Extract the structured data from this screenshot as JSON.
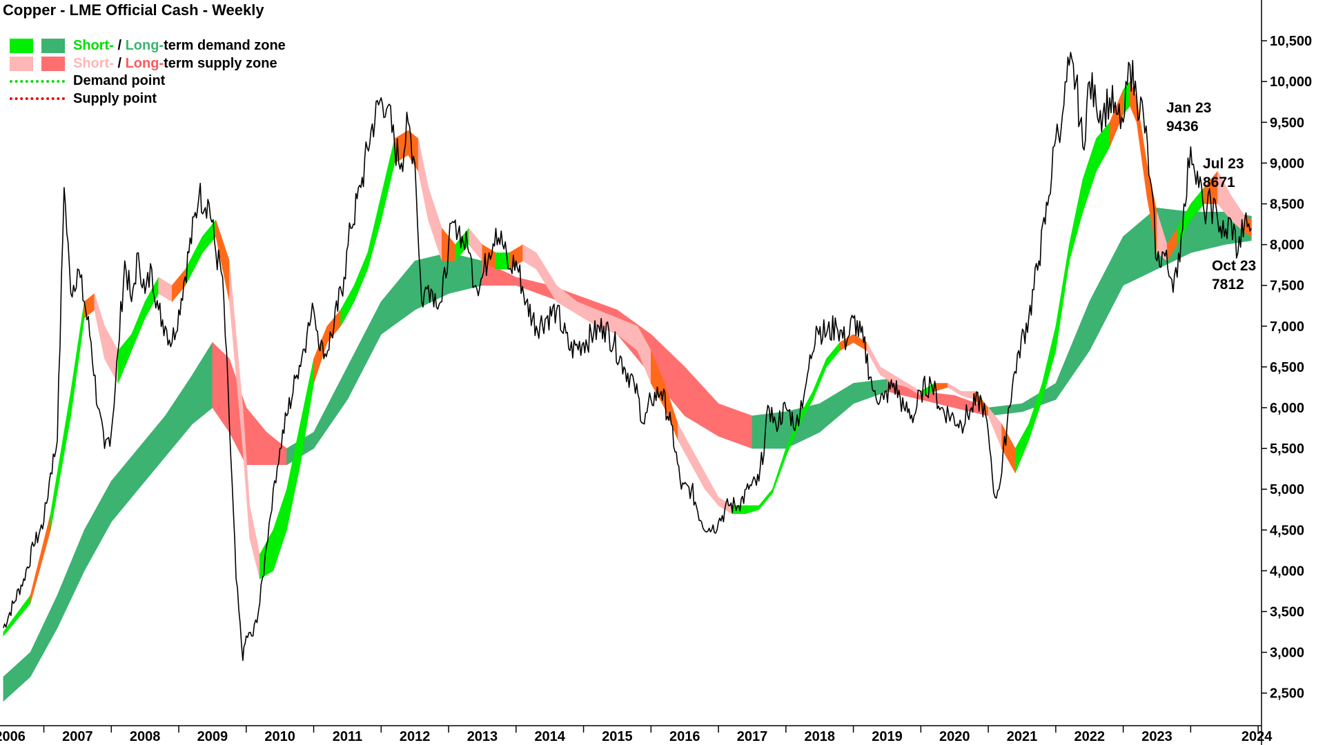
{
  "chart_data": {
    "type": "line",
    "title": "Copper - LME Official Cash - Weekly",
    "ylim": [
      2100,
      11000
    ],
    "xlim": [
      2005.35,
      2024.05
    ],
    "x_ticks": [
      2006,
      2007,
      2008,
      2009,
      2010,
      2011,
      2012,
      2013,
      2014,
      2015,
      2016,
      2017,
      2018,
      2019,
      2020,
      2021,
      2022,
      2023,
      2024
    ],
    "y_ticks": [
      2500,
      3000,
      3500,
      4000,
      4500,
      5000,
      5500,
      6000,
      6500,
      7000,
      7500,
      8000,
      8500,
      9000,
      9500,
      10000,
      10500
    ],
    "y_tick_labels": [
      "2,500",
      "3,000",
      "3,500",
      "4,000",
      "4,500",
      "5,000",
      "5,500",
      "6,000",
      "6,500",
      "7,000",
      "7,500",
      "8,000",
      "8,500",
      "9,000",
      "9,500",
      "10,000",
      "10,500"
    ],
    "colors": {
      "price": "#000000",
      "short_demand": "#00ee00",
      "long_demand": "#3cb371",
      "short_supply": "#ffb6b6",
      "long_supply": "#ff6f6f",
      "overlap": "#ff6a1a",
      "demand_point": "#00dd00",
      "supply_point": "#ee0000"
    },
    "legend": {
      "placement": "top-left",
      "demand_zone": {
        "short": "Short-",
        "slash": " / ",
        "long": "Long-",
        "rest": "term demand zone"
      },
      "supply_zone": {
        "short": "Short-",
        "slash": " / ",
        "long": "Long-",
        "rest": "term supply zone"
      },
      "demand_point": "Demand point",
      "supply_point": "Supply point"
    },
    "annotations": [
      {
        "label": "Jan 23",
        "value": "9436"
      },
      {
        "label": "Jul 23",
        "value": "8671"
      },
      {
        "label": "Oct 23",
        "value": "7812"
      }
    ],
    "series": [
      {
        "role": "price",
        "x": [
          2005.4,
          2005.55,
          2005.7,
          2005.85,
          2006.0,
          2006.1,
          2006.2,
          2006.3,
          2006.4,
          2006.5,
          2006.6,
          2006.7,
          2006.8,
          2006.9,
          2007.0,
          2007.1,
          2007.2,
          2007.3,
          2007.4,
          2007.5,
          2007.6,
          2007.7,
          2007.8,
          2007.9,
          2008.0,
          2008.15,
          2008.3,
          2008.45,
          2008.55,
          2008.65,
          2008.75,
          2008.85,
          2008.95,
          2009.0,
          2009.1,
          2009.2,
          2009.3,
          2009.4,
          2009.5,
          2009.6,
          2009.75,
          2009.9,
          2010.0,
          2010.15,
          2010.3,
          2010.45,
          2010.55,
          2010.7,
          2010.85,
          2011.0,
          2011.1,
          2011.2,
          2011.3,
          2011.4,
          2011.5,
          2011.6,
          2011.7,
          2011.8,
          2011.9,
          2012.0,
          2012.1,
          2012.2,
          2012.3,
          2012.4,
          2012.5,
          2012.6,
          2012.7,
          2012.8,
          2012.9,
          2013.0,
          2013.15,
          2013.3,
          2013.45,
          2013.6,
          2013.8,
          2014.0,
          2014.15,
          2014.3,
          2014.45,
          2014.6,
          2014.75,
          2014.9,
          2015.0,
          2015.15,
          2015.3,
          2015.45,
          2015.6,
          2015.75,
          2015.9,
          2016.0,
          2016.15,
          2016.3,
          2016.45,
          2016.6,
          2016.75,
          2016.85,
          2017.0,
          2017.15,
          2017.3,
          2017.45,
          2017.6,
          2017.75,
          2017.9,
          2018.0,
          2018.15,
          2018.3,
          2018.45,
          2018.6,
          2018.75,
          2018.9,
          2019.0,
          2019.15,
          2019.3,
          2019.45,
          2019.6,
          2019.75,
          2019.9,
          2020.0,
          2020.1,
          2020.2,
          2020.3,
          2020.45,
          2020.6,
          2020.75,
          2020.9,
          2021.0,
          2021.1,
          2021.2,
          2021.3,
          2021.4,
          2021.5,
          2021.6,
          2021.7,
          2021.8,
          2021.9,
          2022.0,
          2022.1,
          2022.2,
          2022.3,
          2022.4,
          2022.5,
          2022.6,
          2022.7,
          2022.8,
          2022.9,
          2023.0,
          2023.1,
          2023.2,
          2023.3,
          2023.4,
          2023.5,
          2023.6,
          2023.7,
          2023.8,
          2023.9
        ],
        "y": [
          3300,
          3600,
          3900,
          4300,
          4600,
          5200,
          5600,
          8700,
          7400,
          7700,
          7300,
          6800,
          6000,
          5500,
          5700,
          6700,
          7800,
          7300,
          7900,
          7400,
          7700,
          7200,
          7000,
          6800,
          7200,
          7900,
          8600,
          8500,
          7900,
          7600,
          5800,
          3900,
          2900,
          3200,
          3200,
          3600,
          4300,
          5000,
          5500,
          5900,
          6400,
          6900,
          7200,
          6600,
          7000,
          7600,
          8200,
          8700,
          9400,
          9800,
          9700,
          9200,
          9000,
          9500,
          9000,
          7300,
          7500,
          7400,
          7300,
          8000,
          8300,
          8100,
          7900,
          7500,
          7600,
          7900,
          8200,
          8000,
          7700,
          7800,
          7300,
          7000,
          7100,
          7200,
          6700,
          6800,
          6900,
          7000,
          6800,
          6500,
          6300,
          5800,
          6100,
          6200,
          5800,
          5000,
          5000,
          4600,
          4500,
          4600,
          4800,
          4800,
          5000,
          5100,
          6000,
          5800,
          6000,
          5800,
          6300,
          7000,
          6900,
          7000,
          6800,
          7100,
          6800,
          6200,
          6100,
          6300,
          6000,
          5900,
          6200,
          6300,
          6000,
          5900,
          5800,
          6000,
          6100,
          5700,
          4900,
          5200,
          6000,
          6700,
          7100,
          7800,
          8600,
          9300,
          9600,
          10200,
          10000,
          9200,
          10000,
          9700,
          9600,
          9800,
          9600,
          9500,
          10200,
          9800,
          9600,
          8800,
          7800,
          7900,
          7600,
          7600,
          8500,
          9200,
          8900,
          8400,
          8500,
          8300,
          8100,
          8300,
          7900,
          8300,
          8200
        ],
        "name": ""
      },
      {
        "role": "short_band",
        "x": [
          2005.4,
          2005.8,
          2006.1,
          2006.4,
          2006.6,
          2006.75,
          2006.9,
          2007.1,
          2007.3,
          2007.5,
          2007.7,
          2007.9,
          2008.1,
          2008.35,
          2008.55,
          2008.75,
          2008.95,
          2009.05,
          2009.2,
          2009.4,
          2009.6,
          2009.8,
          2010.0,
          2010.2,
          2010.4,
          2010.6,
          2010.8,
          2011.0,
          2011.2,
          2011.4,
          2011.55,
          2011.7,
          2011.9,
          2012.1,
          2012.3,
          2012.5,
          2012.7,
          2012.9,
          2013.1,
          2013.3,
          2013.6,
          2013.9,
          2014.2,
          2014.5,
          2014.8,
          2015.0,
          2015.2,
          2015.4,
          2015.6,
          2015.8,
          2016.0,
          2016.2,
          2016.4,
          2016.6,
          2016.8,
          2017.0,
          2017.2,
          2017.4,
          2017.6,
          2017.8,
          2018.0,
          2018.2,
          2018.4,
          2018.6,
          2018.8,
          2019.0,
          2019.2,
          2019.4,
          2019.6,
          2019.8,
          2020.0,
          2020.2,
          2020.4,
          2020.6,
          2020.8,
          2021.0,
          2021.2,
          2021.4,
          2021.6,
          2021.8,
          2022.0,
          2022.1,
          2022.2,
          2022.35,
          2022.5,
          2022.65,
          2022.8,
          2023.0,
          2023.2,
          2023.4,
          2023.6,
          2023.8,
          2023.9
        ],
        "upper": [
          3250,
          3700,
          4700,
          6200,
          7300,
          7400,
          7000,
          6700,
          6900,
          7300,
          7600,
          7500,
          7700,
          8100,
          8300,
          7800,
          6000,
          4800,
          4200,
          4500,
          5000,
          5800,
          6600,
          7000,
          7200,
          7500,
          7900,
          8600,
          9300,
          9400,
          9300,
          8700,
          8200,
          8000,
          8200,
          8000,
          7900,
          7900,
          8000,
          7900,
          7500,
          7300,
          7200,
          7100,
          7000,
          6700,
          6300,
          5800,
          5500,
          5200,
          4900,
          4800,
          4800,
          4800,
          5000,
          5500,
          5900,
          6200,
          6600,
          6800,
          6900,
          6800,
          6500,
          6400,
          6300,
          6200,
          6300,
          6300,
          6200,
          6200,
          6000,
          5800,
          5500,
          5800,
          6300,
          7000,
          8000,
          8800,
          9300,
          9500,
          9900,
          10000,
          9800,
          9000,
          8400,
          8000,
          8200,
          8500,
          8700,
          8900,
          8600,
          8350,
          8300
        ],
        "lower": [
          3200,
          3600,
          4500,
          5900,
          7100,
          7200,
          6600,
          6300,
          6700,
          7100,
          7400,
          7300,
          7500,
          7900,
          8100,
          7300,
          5500,
          4400,
          3900,
          4000,
          4500,
          5300,
          6300,
          6800,
          7000,
          7300,
          7700,
          8300,
          9000,
          9100,
          8900,
          8300,
          7800,
          7800,
          8000,
          7800,
          7700,
          7700,
          7800,
          7700,
          7300,
          7150,
          7000,
          6900,
          6700,
          6300,
          6000,
          5600,
          5300,
          5000,
          4800,
          4700,
          4700,
          4750,
          4950,
          5400,
          5800,
          6100,
          6500,
          6700,
          6800,
          6700,
          6400,
          6300,
          6250,
          6150,
          6200,
          6250,
          6150,
          6100,
          5900,
          5500,
          5200,
          5600,
          6100,
          6700,
          7800,
          8400,
          8900,
          9200,
          9600,
          9700,
          9500,
          8600,
          7900,
          7800,
          8000,
          8300,
          8500,
          8500,
          8300,
          8150,
          8100
        ]
      },
      {
        "role": "long_band",
        "x": [
          2005.4,
          2005.8,
          2006.2,
          2006.6,
          2007.0,
          2007.4,
          2007.8,
          2008.2,
          2008.5,
          2008.75,
          2009.0,
          2009.3,
          2009.6,
          2010.0,
          2010.5,
          2011.0,
          2011.5,
          2012.0,
          2012.5,
          2013.0,
          2013.5,
          2014.0,
          2014.5,
          2015.0,
          2015.5,
          2016.0,
          2016.5,
          2017.0,
          2017.5,
          2018.0,
          2018.5,
          2019.0,
          2019.5,
          2020.0,
          2020.5,
          2021.0,
          2021.5,
          2022.0,
          2022.5,
          2023.0,
          2023.5,
          2023.9
        ],
        "upper": [
          2700,
          3000,
          3700,
          4500,
          5100,
          5500,
          5900,
          6400,
          6800,
          6600,
          6000,
          5700,
          5500,
          5700,
          6500,
          7300,
          7800,
          7900,
          7800,
          7600,
          7500,
          7350,
          7200,
          6900,
          6500,
          6050,
          5900,
          5950,
          6050,
          6300,
          6350,
          6200,
          6150,
          6000,
          6050,
          6300,
          7300,
          8100,
          8450,
          8400,
          8400,
          8350
        ],
        "lower": [
          2400,
          2700,
          3300,
          4000,
          4600,
          5000,
          5400,
          5800,
          6000,
          5700,
          5300,
          5300,
          5300,
          5500,
          6100,
          6900,
          7200,
          7400,
          7500,
          7500,
          7350,
          7200,
          6900,
          6400,
          5900,
          5650,
          5500,
          5500,
          5700,
          6050,
          6200,
          6100,
          6000,
          5900,
          5950,
          6100,
          6700,
          7500,
          7700,
          7900,
          8000,
          8050
        ]
      }
    ]
  }
}
